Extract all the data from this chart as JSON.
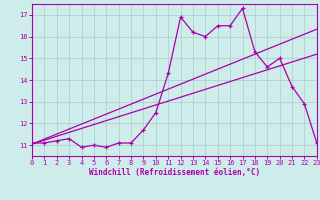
{
  "xlabel": "Windchill (Refroidissement éolien,°C)",
  "background_color": "#ceecea",
  "grid_color": "#aacccc",
  "line_color": "#aa00aa",
  "x": [
    0,
    1,
    2,
    3,
    4,
    5,
    6,
    7,
    8,
    9,
    10,
    11,
    12,
    13,
    14,
    15,
    16,
    17,
    18,
    19,
    20,
    21,
    22,
    23
  ],
  "y_main": [
    11.1,
    11.1,
    11.2,
    11.3,
    10.9,
    11.0,
    10.9,
    11.1,
    11.1,
    11.7,
    12.5,
    14.3,
    16.9,
    16.2,
    16.0,
    16.5,
    16.5,
    17.3,
    15.3,
    14.6,
    15.0,
    13.7,
    12.9,
    11.1
  ],
  "y_linear1": [
    11.05,
    11.23,
    11.41,
    11.59,
    11.77,
    11.95,
    12.13,
    12.31,
    12.49,
    12.67,
    12.85,
    13.03,
    13.21,
    13.39,
    13.57,
    13.75,
    13.93,
    14.11,
    14.29,
    14.47,
    14.65,
    14.83,
    15.01,
    15.19
  ],
  "y_linear2": [
    11.05,
    11.28,
    11.51,
    11.74,
    11.97,
    12.2,
    12.43,
    12.66,
    12.89,
    13.12,
    13.35,
    13.58,
    13.81,
    14.04,
    14.27,
    14.5,
    14.73,
    14.96,
    15.19,
    15.42,
    15.65,
    15.88,
    16.11,
    16.34
  ],
  "xlim": [
    0,
    23
  ],
  "ylim": [
    10.5,
    17.5
  ],
  "yticks": [
    11,
    12,
    13,
    14,
    15,
    16,
    17
  ],
  "xticks": [
    0,
    1,
    2,
    3,
    4,
    5,
    6,
    7,
    8,
    9,
    10,
    11,
    12,
    13,
    14,
    15,
    16,
    17,
    18,
    19,
    20,
    21,
    22,
    23
  ]
}
